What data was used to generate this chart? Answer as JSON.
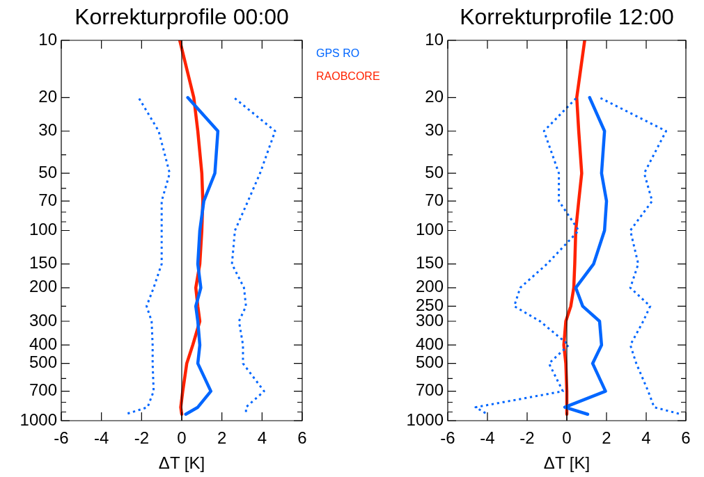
{
  "chart_data": [
    {
      "type": "line",
      "title": "Korrekturprofile 00:00",
      "xlabel": "ΔT [K]",
      "xlim": [
        -6,
        6
      ],
      "xticks": [
        -6,
        -4,
        -2,
        0,
        2,
        4,
        6
      ],
      "ylim": [
        1000,
        10
      ],
      "log": "y",
      "grid": false,
      "legend": "top right",
      "yticks": [
        10,
        20,
        30,
        {
          "value": 40,
          "label": null
        },
        50,
        {
          "value": 60,
          "label": null
        },
        70,
        {
          "value": 80,
          "label": null
        },
        {
          "value": 90,
          "label": null
        },
        100,
        150,
        200,
        {
          "value": 250,
          "label": null
        },
        300,
        400,
        500,
        {
          "value": 600,
          "label": null
        },
        700,
        {
          "value": 800,
          "label": null
        },
        {
          "value": 900,
          "label": null
        },
        1000
      ],
      "ref_lines": [
        {
          "axis": "x",
          "value": 0,
          "color": "#000000"
        }
      ],
      "series": [
        {
          "name": "GPS RO",
          "color": "#0066ff",
          "line_style": "solid",
          "x": [
            0.3,
            1.8,
            1.65,
            1.1,
            0.9,
            0.8,
            0.95,
            0.7,
            0.8,
            0.9,
            0.8,
            1.45,
            0.8,
            0.2
          ],
          "values": [
            20,
            30,
            50,
            70,
            100,
            150,
            200,
            250,
            300,
            400,
            500,
            700,
            850,
            925
          ]
        },
        {
          "color": "#0066ff",
          "line_style": "dotted",
          "x": [
            -2.15,
            -1.15,
            -0.6,
            -1.0,
            -1.0,
            -1.0,
            -1.4,
            -1.75,
            -1.5,
            -1.45,
            -1.45,
            -1.4,
            -1.7,
            -2.8
          ],
          "values": [
            20,
            30,
            50,
            70,
            100,
            150,
            200,
            250,
            300,
            400,
            500,
            700,
            850,
            925
          ]
        },
        {
          "color": "#0066ff",
          "line_style": "dotted",
          "x": [
            2.6,
            4.65,
            3.9,
            3.3,
            2.65,
            2.5,
            3.1,
            3.2,
            2.85,
            3.05,
            3.05,
            4.1,
            3.2,
            3.2
          ],
          "values": [
            20,
            30,
            50,
            70,
            100,
            150,
            200,
            250,
            300,
            400,
            500,
            700,
            850,
            925
          ]
        },
        {
          "name": "RAOBCORE",
          "color": "#ff2200",
          "line_style": "solid",
          "x": [
            -0.1,
            0.6,
            0.8,
            1.0,
            1.05,
            1.0,
            0.9,
            0.7,
            0.8,
            0.9,
            0.55,
            0.25,
            0.05,
            -0.05,
            0
          ],
          "values": [
            10,
            20,
            30,
            50,
            70,
            100,
            150,
            200,
            250,
            300,
            400,
            500,
            700,
            850,
            925
          ]
        }
      ]
    },
    {
      "type": "line",
      "title": "Korrekturprofile 12:00",
      "xlabel": "ΔT [K]",
      "xlim": [
        -6,
        6
      ],
      "xticks": [
        -6,
        -4,
        -2,
        0,
        2,
        4,
        6
      ],
      "ylim": [
        1000,
        10
      ],
      "log": "y",
      "grid": false,
      "yticks": [
        10,
        20,
        30,
        {
          "value": 40,
          "label": null
        },
        50,
        {
          "value": 60,
          "label": null
        },
        70,
        {
          "value": 80,
          "label": null
        },
        {
          "value": 90,
          "label": null
        },
        100,
        150,
        200,
        250,
        300,
        400,
        500,
        {
          "value": 600,
          "label": null
        },
        700,
        {
          "value": 800,
          "label": null
        },
        {
          "value": 900,
          "label": null
        },
        1000
      ],
      "ref_lines": [
        {
          "axis": "x",
          "value": 0,
          "color": "#000000"
        }
      ],
      "series": [
        {
          "color": "#0066ff",
          "line_style": "solid",
          "x": [
            1.15,
            1.9,
            1.75,
            2.0,
            1.9,
            1.35,
            0.45,
            0.8,
            1.65,
            1.75,
            1.3,
            1.95,
            -0.1,
            1.05
          ],
          "values": [
            20,
            30,
            50,
            70,
            100,
            150,
            200,
            250,
            300,
            400,
            500,
            700,
            850,
            925
          ]
        },
        {
          "color": "#0066ff",
          "line_style": "dotted",
          "x": [
            0.5,
            -1.15,
            -0.4,
            -0.4,
            0.6,
            -1.0,
            -2.35,
            -2.65,
            -1.35,
            0.1,
            -0.9,
            -0.2,
            -4.6,
            -4.0
          ],
          "values": [
            20,
            30,
            50,
            70,
            100,
            150,
            200,
            250,
            300,
            400,
            500,
            700,
            850,
            925
          ]
        },
        {
          "color": "#0066ff",
          "line_style": "dotted",
          "x": [
            1.65,
            5.0,
            3.9,
            4.3,
            3.2,
            3.6,
            3.2,
            4.2,
            3.85,
            3.2,
            3.5,
            4.1,
            4.4,
            5.75
          ],
          "values": [
            20,
            30,
            50,
            70,
            100,
            150,
            200,
            250,
            300,
            400,
            500,
            700,
            850,
            925
          ]
        },
        {
          "color": "#ff2200",
          "line_style": "solid",
          "x": [
            0.9,
            0.5,
            0.6,
            0.75,
            0.6,
            0.45,
            0.4,
            0.35,
            0.2,
            -0.05,
            -0.15,
            -0.05,
            0,
            0
          ],
          "values": [
            10,
            20,
            30,
            50,
            70,
            100,
            150,
            200,
            250,
            300,
            400,
            500,
            700,
            925
          ]
        }
      ]
    }
  ]
}
